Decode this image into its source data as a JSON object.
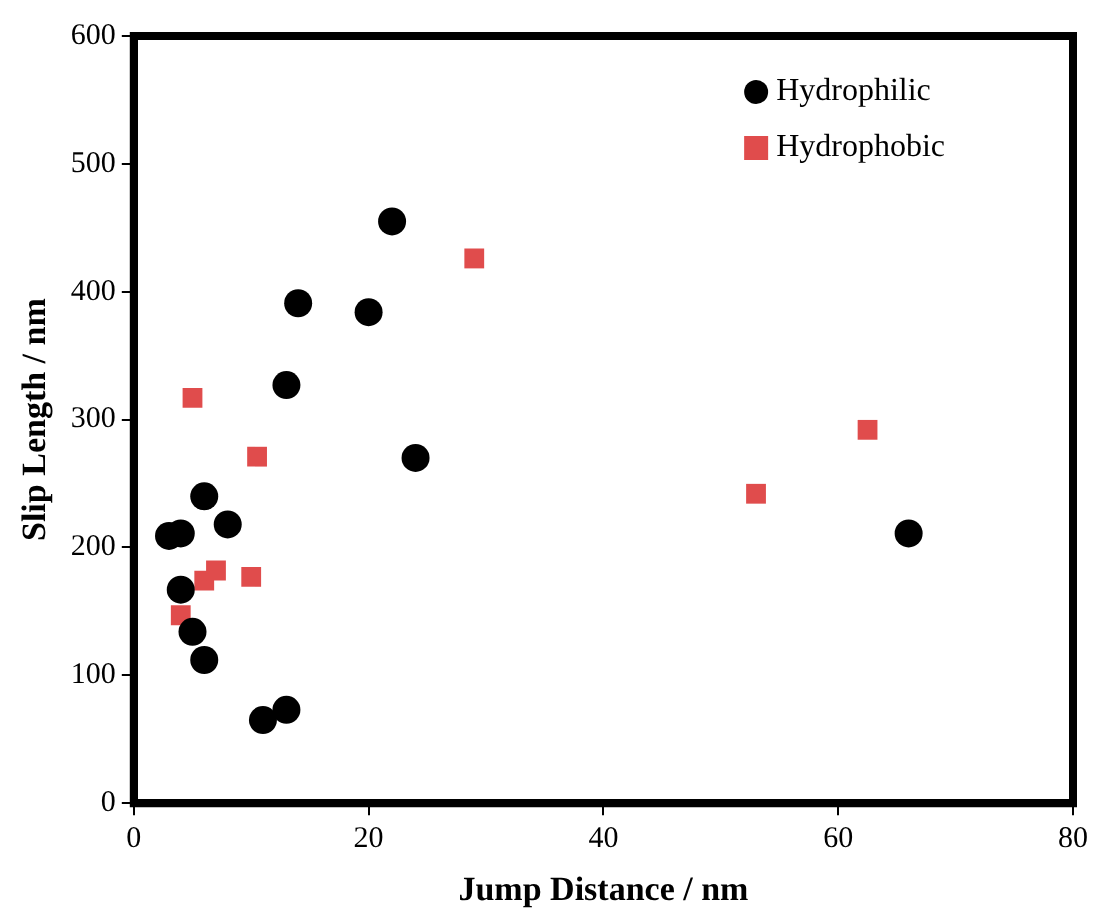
{
  "chart_data": {
    "type": "scatter",
    "xlabel": "Jump Distance / nm",
    "ylabel": "Slip Length / nm",
    "xlim": [
      0,
      80
    ],
    "xticks": [
      0,
      20,
      40,
      60,
      80
    ],
    "ylim": [
      0,
      600
    ],
    "yticks": [
      0,
      100,
      200,
      300,
      400,
      500,
      600
    ],
    "grid": false,
    "legend": "top right",
    "series": [
      {
        "name": "Hydrophilic",
        "color": "#000000",
        "marker": "circle",
        "x": [
          3,
          4,
          4,
          5,
          6,
          6,
          8,
          11,
          13,
          13,
          14,
          20,
          22,
          24,
          66
        ],
        "values": [
          209,
          211,
          167,
          134,
          240,
          112,
          218,
          65,
          327,
          73,
          391,
          384,
          455,
          270,
          211
        ]
      },
      {
        "name": "Hydrophobic",
        "color": "#e04c4c",
        "marker": "square",
        "x": [
          4,
          5,
          6,
          7,
          10,
          10.5,
          29,
          53,
          62.5
        ],
        "values": [
          147,
          317,
          174,
          182,
          177,
          271,
          426,
          242,
          292
        ]
      }
    ]
  }
}
